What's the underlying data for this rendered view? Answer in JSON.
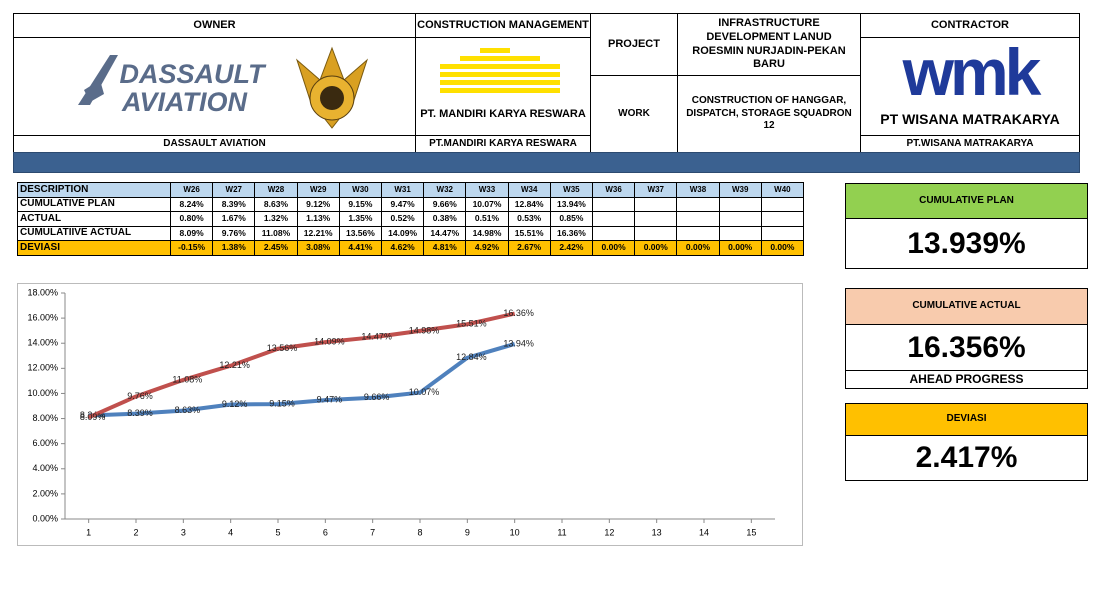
{
  "header": {
    "owner": {
      "title": "OWNER",
      "logo_text": [
        "DASSAULT",
        "AVIATION"
      ],
      "caption": "DASSAULT AVIATION"
    },
    "construction_management": {
      "title": "CONSTRUCTION MANAGEMENT",
      "logo_text": "PT. MANDIRI KARYA RESWARA",
      "caption": "PT.MANDIRI KARYA RESWARA"
    },
    "project": {
      "label": "PROJECT",
      "value": "INFRASTRUCTURE DEVELOPMENT LANUD ROESMIN NURJADIN-PEKAN BARU"
    },
    "work": {
      "label": "WORK",
      "value": "CONSTRUCTION OF HANGGAR, DISPATCH, STORAGE SQUADRON 12"
    },
    "contractor": {
      "title": "CONTRACTOR",
      "logo_text": [
        "wmk",
        "PT WISANA MATRAKARYA"
      ],
      "caption": "PT.WISANA MATRAKARYA"
    }
  },
  "table": {
    "header": [
      "DESCRIPTION",
      "W26",
      "W27",
      "W28",
      "W29",
      "W30",
      "W31",
      "W32",
      "W33",
      "W34",
      "W35",
      "W36",
      "W37",
      "W38",
      "W39",
      "W40"
    ],
    "rows": [
      {
        "label": "CUMULATIVE PLAN",
        "cells": [
          "8.24%",
          "8.39%",
          "8.63%",
          "9.12%",
          "9.15%",
          "9.47%",
          "9.66%",
          "10.07%",
          "12.84%",
          "13.94%"
        ]
      },
      {
        "label": "ACTUAL",
        "cells": [
          "0.80%",
          "1.67%",
          "1.32%",
          "1.13%",
          "1.35%",
          "0.52%",
          "0.38%",
          "0.51%",
          "0.53%",
          "0.85%"
        ]
      },
      {
        "label": "CUMULATIIVE ACTUAL",
        "cells": [
          "8.09%",
          "9.76%",
          "11.08%",
          "12.21%",
          "13.56%",
          "14.09%",
          "14.47%",
          "14.98%",
          "15.51%",
          "16.36%"
        ]
      },
      {
        "label": "DEVIASI",
        "cells": [
          "-0.15%",
          "1.38%",
          "2.45%",
          "3.08%",
          "4.41%",
          "4.62%",
          "4.81%",
          "4.92%",
          "2.67%",
          "2.42%",
          "0.00%",
          "0.00%",
          "0.00%",
          "0.00%",
          "0.00%"
        ]
      }
    ]
  },
  "kpis": [
    {
      "title": "CUMULATIVE PLAN",
      "value": "13.939%",
      "color": "#92d050"
    },
    {
      "title": "CUMULATIVE ACTUAL",
      "value": "16.356%",
      "color": "#f8cbad",
      "note": "AHEAD PROGRESS"
    },
    {
      "title": "DEVIASI",
      "value": "2.417%",
      "color": "#ffc000"
    }
  ],
  "chart_data": {
    "type": "line",
    "x": [
      1,
      2,
      3,
      4,
      5,
      6,
      7,
      8,
      9,
      10
    ],
    "xlim": [
      0.5,
      15.5
    ],
    "xticks": [
      1,
      2,
      3,
      4,
      5,
      6,
      7,
      8,
      9,
      10,
      11,
      12,
      13,
      14,
      15
    ],
    "ylim": [
      0,
      18
    ],
    "yticks": [
      {
        "value": 0,
        "label": "0.00%"
      },
      {
        "value": 2,
        "label": "2.00%"
      },
      {
        "value": 4,
        "label": "4.00%"
      },
      {
        "value": 6,
        "label": "6.00%"
      },
      {
        "value": 8,
        "label": "8.00%"
      },
      {
        "value": 10,
        "label": "10.00%"
      },
      {
        "value": 12,
        "label": "12.00%"
      },
      {
        "value": 14,
        "label": "14.00%"
      },
      {
        "value": 16,
        "label": "16.00%"
      },
      {
        "value": 18,
        "label": "18.00%"
      }
    ],
    "series": [
      {
        "color": "#4f81bd",
        "values": [
          8.24,
          8.39,
          8.63,
          9.12,
          9.15,
          9.47,
          9.66,
          10.07,
          12.84,
          13.94
        ],
        "value_labels": [
          "8.24%",
          "8.39%",
          "8.63%",
          "9.12%",
          "9.15%",
          "9.47%",
          "9.66%",
          "10.07%",
          "12.84%",
          "13.94%"
        ]
      },
      {
        "color": "#c0504d",
        "values": [
          8.09,
          9.76,
          11.08,
          12.21,
          13.56,
          14.09,
          14.47,
          14.98,
          15.51,
          16.36
        ],
        "value_labels": [
          "8.09%",
          "9.76%",
          "11.08%",
          "12.21%",
          "13.56%",
          "14.09%",
          "14.47%",
          "14.98%",
          "15.51%",
          "16.36%"
        ]
      }
    ]
  }
}
